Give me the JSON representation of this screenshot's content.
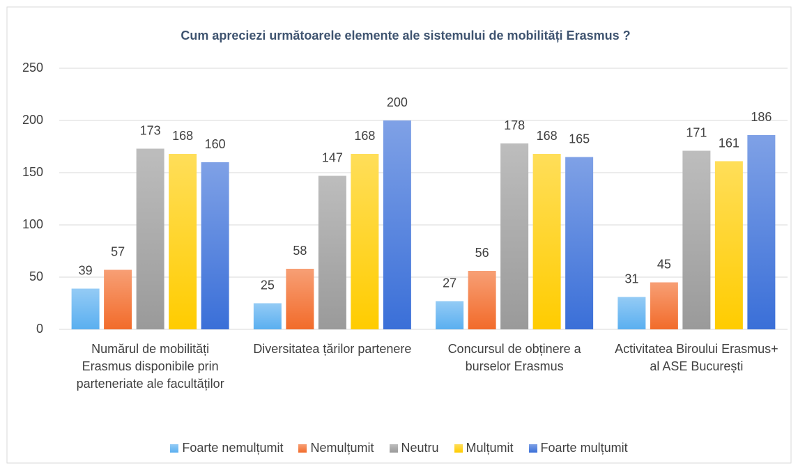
{
  "chart_data": {
    "type": "bar",
    "title": "Cum apreciezi următoarele elemente ale sistemului de mobilități Erasmus ?",
    "categories": [
      "Numărul de mobilități Erasmus disponibile prin parteneriate ale facultăților",
      "Diversitatea țărilor partenere",
      "Concursul de obținere a burselor Erasmus",
      "Activitatea Biroului Erasmus+\nal ASE București"
    ],
    "series": [
      {
        "name": "Foarte nemulțumit",
        "color": "#5aaff0",
        "values": [
          39,
          25,
          27,
          31
        ]
      },
      {
        "name": "Nemulțumit",
        "color": "#f26b2a",
        "values": [
          57,
          58,
          56,
          45
        ]
      },
      {
        "name": "Neutru",
        "color": "#9a9a9a",
        "values": [
          173,
          147,
          178,
          171
        ]
      },
      {
        "name": "Mulțumit",
        "color": "#ffcc00",
        "values": [
          168,
          168,
          168,
          161
        ]
      },
      {
        "name": "Foarte mulțumit",
        "color": "#3a6fd8",
        "values": [
          160,
          200,
          165,
          186
        ]
      }
    ],
    "ylim": [
      0,
      250
    ],
    "yticks": [
      0,
      50,
      100,
      150,
      200,
      250
    ],
    "grid": true,
    "legend": "bottom"
  }
}
